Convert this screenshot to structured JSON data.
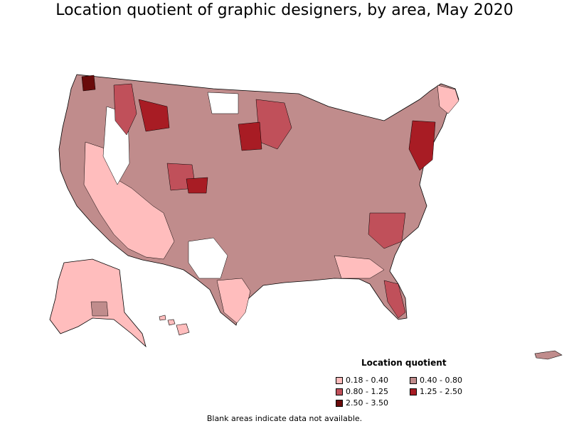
{
  "title": "Location quotient of graphic designers, by area, May 2020",
  "legend": {
    "title": "Location quotient",
    "items": [
      {
        "label": "0.18 - 0.40",
        "color": "#ffbdbd"
      },
      {
        "label": "0.40 - 0.80",
        "color": "#c08c8c"
      },
      {
        "label": "0.80 - 1.25",
        "color": "#c0505a"
      },
      {
        "label": "1.25 - 2.50",
        "color": "#a81c24"
      },
      {
        "label": "2.50 - 3.50",
        "color": "#6a0a0a"
      }
    ]
  },
  "footnote": "Blank areas indicate data not available."
}
